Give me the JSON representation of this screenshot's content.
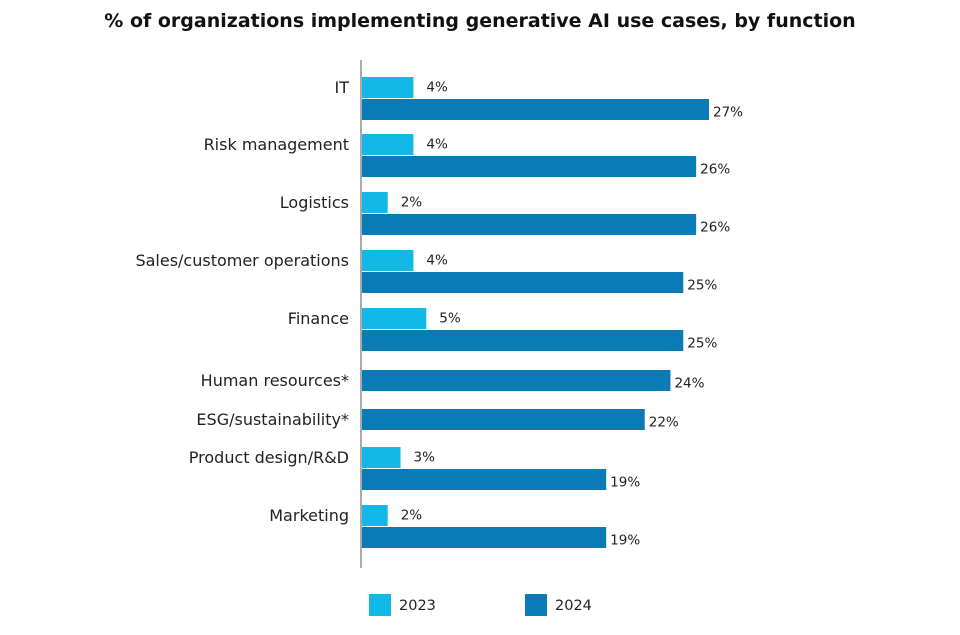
{
  "chart_data": {
    "type": "bar",
    "orientation": "horizontal",
    "title": "% of organizations implementing generative AI use cases, by function",
    "categories": [
      "IT",
      "Risk management",
      "Logistics",
      "Sales/customer operations",
      "Finance",
      "Human resources*",
      "ESG/sustainability*",
      "Product design/R&D",
      "Marketing"
    ],
    "series": [
      {
        "name": "2023",
        "color": "#12b8e6",
        "values": [
          4,
          4,
          2,
          4,
          5,
          null,
          null,
          3,
          2
        ],
        "labels": [
          "4%",
          "4%",
          "2%",
          "4%",
          "5%",
          "",
          "",
          "3%",
          "2%"
        ]
      },
      {
        "name": "2024",
        "color": "#0a7bb5",
        "values": [
          27,
          26,
          26,
          25,
          25,
          24,
          22,
          19,
          19
        ],
        "labels": [
          "27%",
          "26%",
          "26%",
          "25%",
          "25%",
          "24%",
          "22%",
          "19%",
          "19%"
        ]
      }
    ],
    "xlim": [
      0,
      30
    ],
    "legend_position": "bottom",
    "grid": false
  }
}
